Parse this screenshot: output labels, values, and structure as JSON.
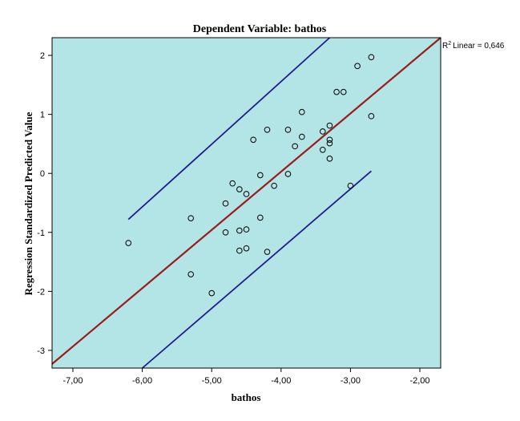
{
  "chart_data": {
    "type": "scatter",
    "title": "Dependent Variable: bathos",
    "xlabel": "bathos",
    "ylabel": "Regression Standardized Predicted Value",
    "xlim": [
      -7.3,
      -1.7
    ],
    "ylim": [
      -3.3,
      2.3
    ],
    "x_ticks": [
      -7,
      -6,
      -5,
      -4,
      -3,
      -2
    ],
    "x_tick_labels": [
      "-7,00",
      "-6,00",
      "-5,00",
      "-4,00",
      "-3,00",
      "-2,00"
    ],
    "y_ticks": [
      -3,
      -2,
      -1,
      0,
      1,
      2
    ],
    "y_tick_labels": [
      "-3",
      "-2",
      "-1",
      "0",
      "1",
      "2"
    ],
    "grid": false,
    "background_color": "#b3e4e6",
    "points": [
      {
        "x": -6.2,
        "y": -1.18
      },
      {
        "x": -5.3,
        "y": -0.76
      },
      {
        "x": -5.3,
        "y": -1.71
      },
      {
        "x": -5.0,
        "y": -2.03
      },
      {
        "x": -4.8,
        "y": -0.51
      },
      {
        "x": -4.8,
        "y": -1.0
      },
      {
        "x": -4.7,
        "y": -0.17
      },
      {
        "x": -4.6,
        "y": -0.27
      },
      {
        "x": -4.6,
        "y": -0.97
      },
      {
        "x": -4.6,
        "y": -1.31
      },
      {
        "x": -4.5,
        "y": -0.35
      },
      {
        "x": -4.5,
        "y": -0.95
      },
      {
        "x": -4.5,
        "y": -1.27
      },
      {
        "x": -4.4,
        "y": 0.57
      },
      {
        "x": -4.3,
        "y": -0.03
      },
      {
        "x": -4.3,
        "y": -0.75
      },
      {
        "x": -4.2,
        "y": 0.74
      },
      {
        "x": -4.2,
        "y": -1.33
      },
      {
        "x": -4.1,
        "y": -0.21
      },
      {
        "x": -3.9,
        "y": 0.74
      },
      {
        "x": -3.9,
        "y": -0.01
      },
      {
        "x": -3.8,
        "y": 0.46
      },
      {
        "x": -3.7,
        "y": 1.04
      },
      {
        "x": -3.7,
        "y": 0.62
      },
      {
        "x": -3.4,
        "y": 0.71
      },
      {
        "x": -3.4,
        "y": 0.4
      },
      {
        "x": -3.3,
        "y": 0.81
      },
      {
        "x": -3.3,
        "y": 0.57
      },
      {
        "x": -3.3,
        "y": 0.51
      },
      {
        "x": -3.3,
        "y": 0.25
      },
      {
        "x": -3.2,
        "y": 1.38
      },
      {
        "x": -3.1,
        "y": 1.38
      },
      {
        "x": -3.0,
        "y": -0.21
      },
      {
        "x": -2.9,
        "y": 1.82
      },
      {
        "x": -2.7,
        "y": 1.97
      },
      {
        "x": -2.7,
        "y": 0.97
      }
    ],
    "fit_line": {
      "label": "R² Linear = 0,646",
      "r2_text": "Linear = 0,646",
      "color": "#9b1c1c",
      "x": [
        -7.3,
        -1.7
      ],
      "y": [
        -3.23,
        2.3
      ]
    },
    "upper_band": {
      "color": "#1f1f8c",
      "x": [
        -6.2,
        -3.3
      ],
      "y": [
        -0.78,
        2.3
      ]
    },
    "lower_band": {
      "color": "#1f1f8c",
      "x": [
        -6.0,
        -2.7
      ],
      "y": [
        -3.3,
        0.04
      ]
    }
  }
}
